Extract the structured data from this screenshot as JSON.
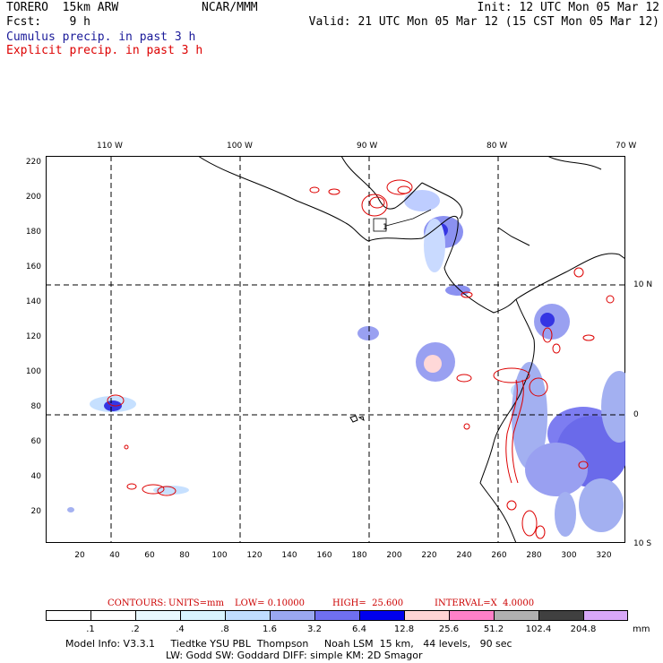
{
  "header": {
    "model": "TORERO  15km ARW",
    "org": "NCAR/MMM",
    "init": "Init: 12 UTC Mon 05 Mar 12",
    "fcst": "Fcst:    9 h",
    "valid": "Valid: 21 UTC Mon 05 Mar 12 (15 CST Mon 05 Mar 12)",
    "field1": "Cumulus precip. in past 3 h",
    "field2": "Explicit precip. in past 3 h",
    "field1_color": "#1a1a99",
    "field2_color": "#dd0000"
  },
  "map": {
    "lon_labels": [
      "110 W",
      "100 W",
      "90 W",
      "80 W",
      "70 W"
    ],
    "lat_labels": [
      "10 N",
      "0",
      "10 S"
    ],
    "y_ticks": [
      "220",
      "200",
      "180",
      "160",
      "140",
      "120",
      "100",
      "80",
      "60",
      "40",
      "20"
    ],
    "x_ticks": [
      "20",
      "40",
      "60",
      "80",
      "100",
      "120",
      "140",
      "160",
      "180",
      "200",
      "220",
      "240",
      "260",
      "280",
      "300",
      "320"
    ],
    "marker_label": "1"
  },
  "contours": {
    "label": "CONTOURS:",
    "units": "UNITS=mm",
    "low": "LOW= 0.10000",
    "high": "HIGH=  25.600",
    "interval": "INTERVAL=X  4.0000"
  },
  "colorbar": {
    "colors": [
      "#ffffff",
      "#ffffff",
      "#e8f8ff",
      "#d8f4ff",
      "#c0ddff",
      "#9aa8f0",
      "#6f6ff0",
      "#0000ee",
      "#ffd4d4",
      "#ff80c8",
      "#b0b0b0",
      "#404040",
      "#d8a8f8"
    ],
    "labels": [
      ".1",
      ".2",
      ".4",
      ".8",
      "1.6",
      "3.2",
      "6.4",
      "12.8",
      "25.6",
      "51.2",
      "102.4",
      "204.8"
    ],
    "units": "mm"
  },
  "footer": {
    "line1": "Model Info: V3.3.1     Tiedtke YSU PBL  Thompson     Noah LSM  15 km,   44 levels,   90 sec",
    "line2": "LW: Godd SW: Goddard DIFF: simple KM: 2D Smagor"
  }
}
